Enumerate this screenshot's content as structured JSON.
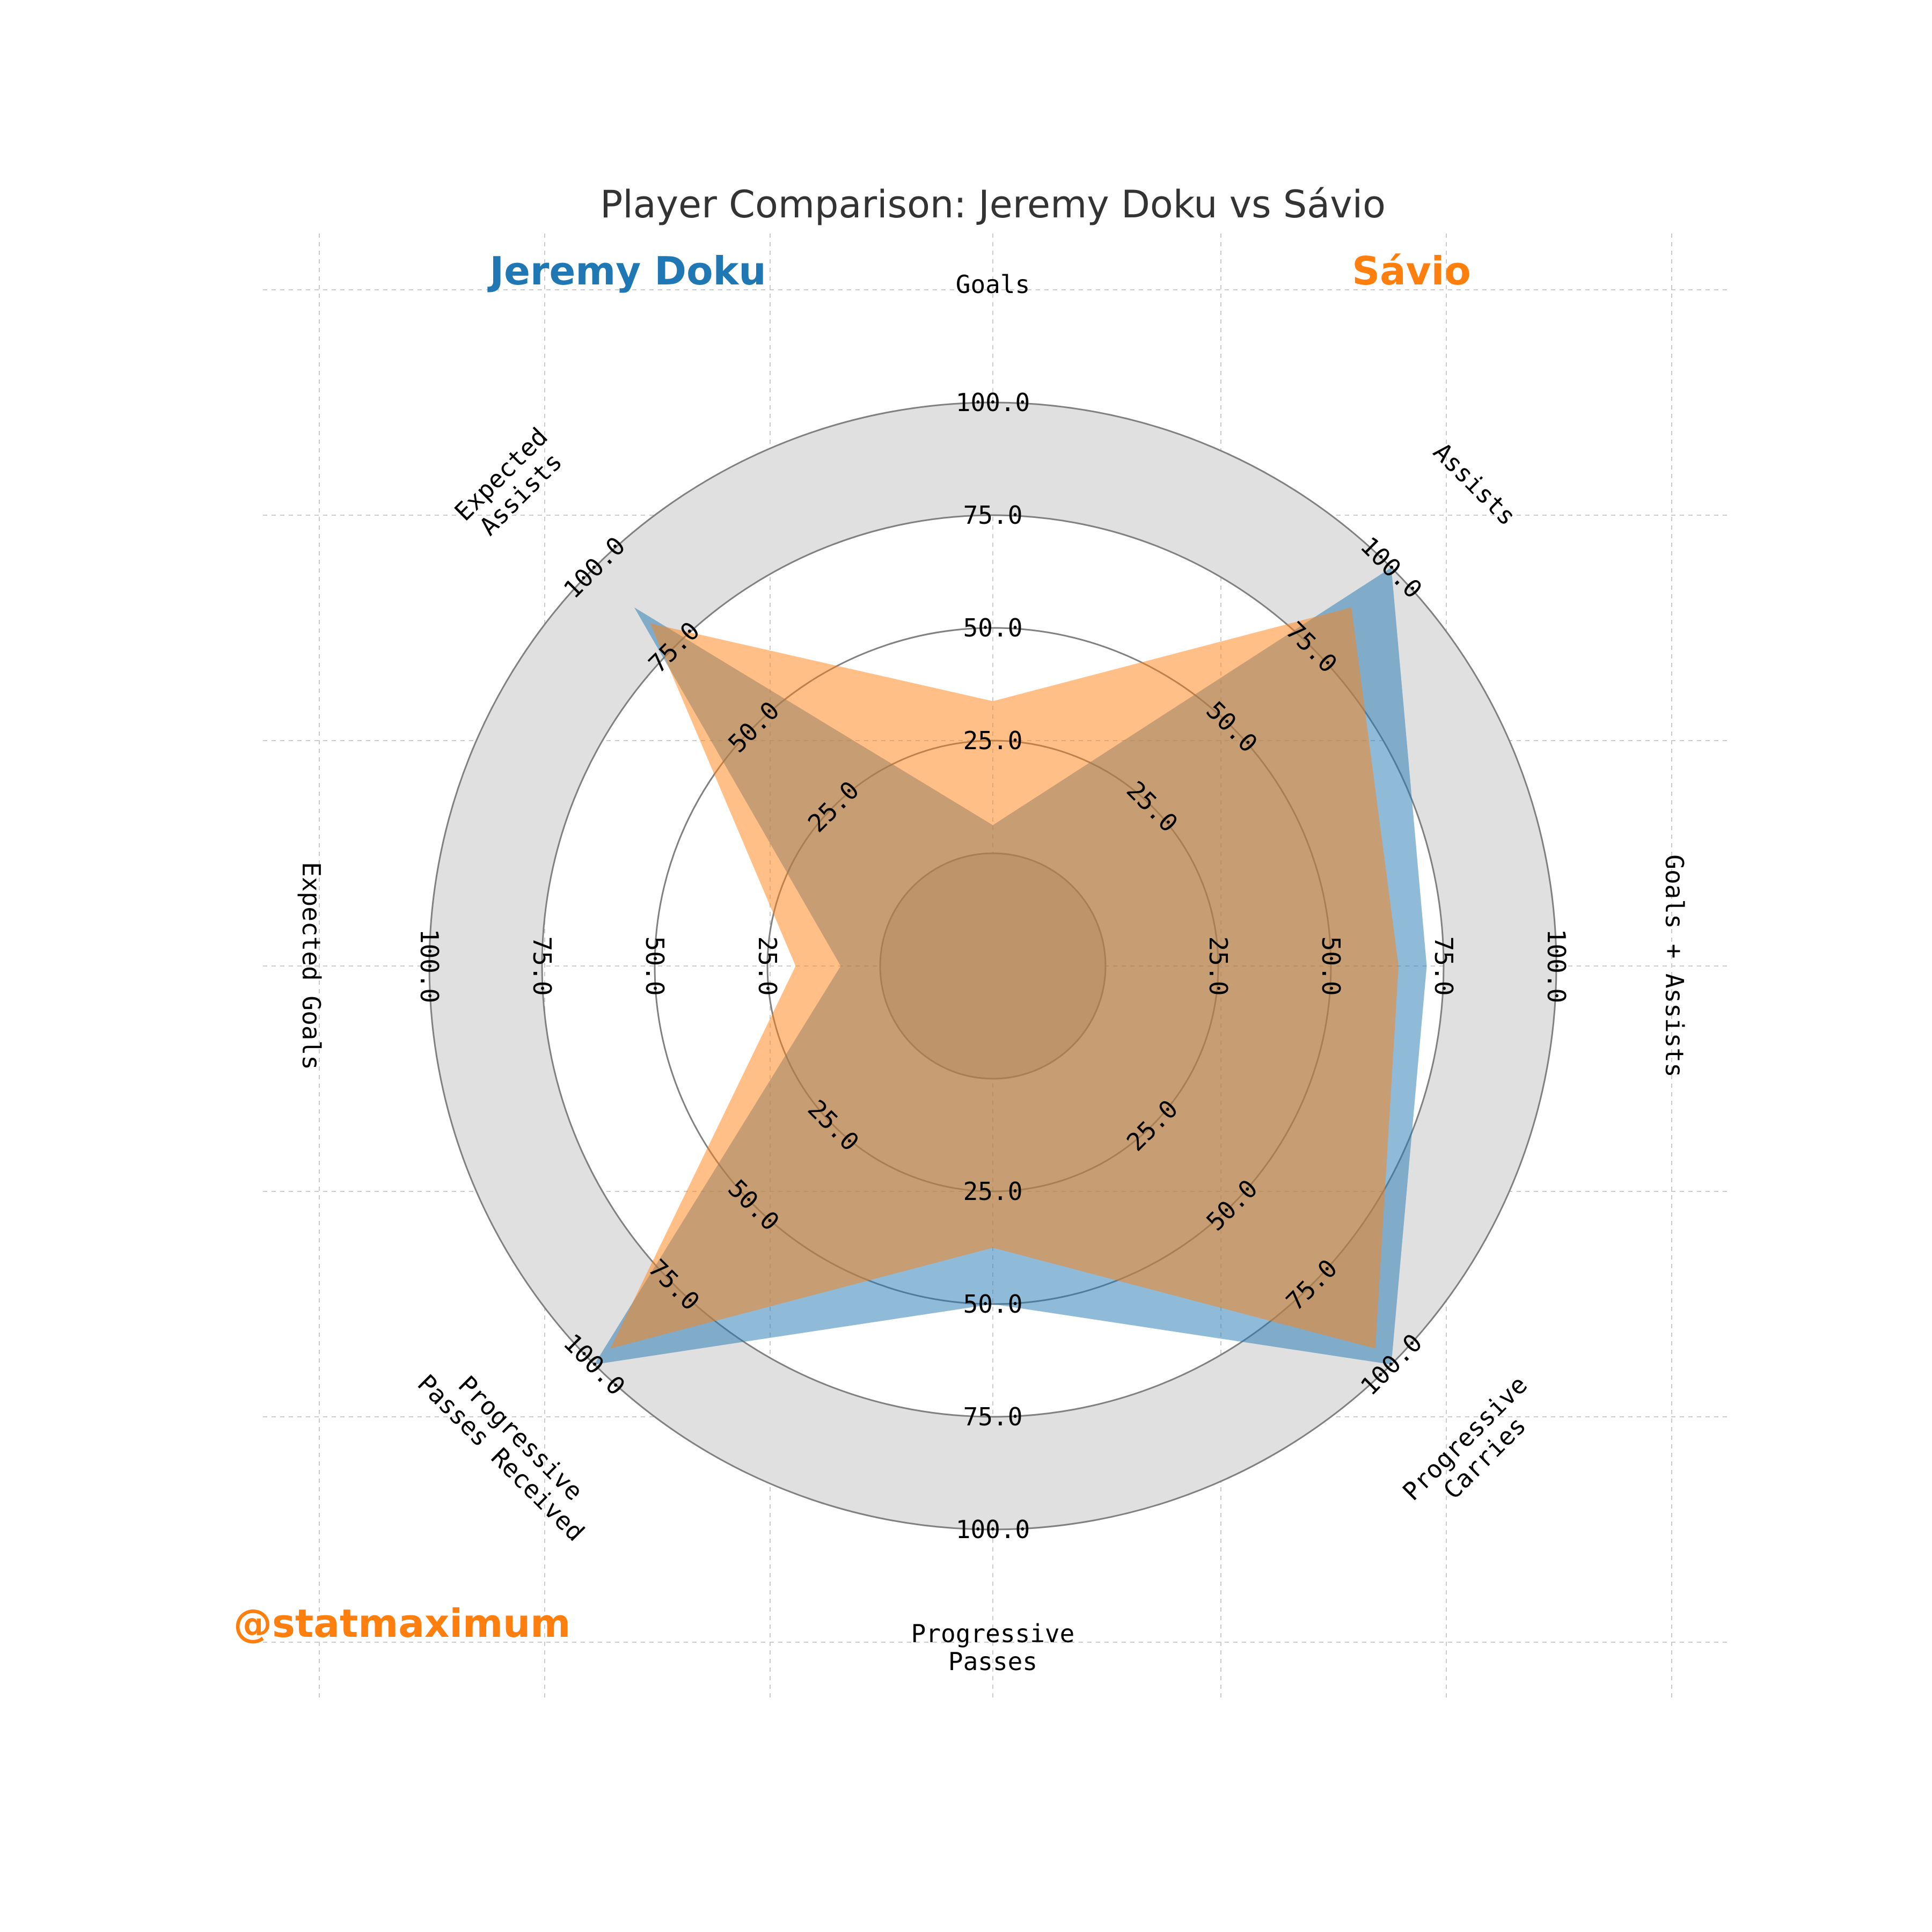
{
  "title": "Player Comparison: Jeremy Doku vs Sávio",
  "watermark": "@statmaximum",
  "players": [
    {
      "name": "Jeremy Doku",
      "color": "#1f77b4"
    },
    {
      "name": "Sávio",
      "color": "#ff7f0e"
    }
  ],
  "chart_data": {
    "type": "radar",
    "categories": [
      "Goals",
      "Assists",
      "Goals + Assists",
      "Progressive\nCarries",
      "Progressive\nPasses",
      "Progressive\nPasses Received",
      "Expected Goals",
      "Expected\nAssists"
    ],
    "series": [
      {
        "name": "Jeremy Doku",
        "values": [
          25,
          100,
          77,
          100,
          60,
          100,
          27,
          90
        ]
      },
      {
        "name": "Sávio",
        "values": [
          47,
          90,
          72,
          96,
          50,
          96,
          35,
          86
        ]
      }
    ],
    "range": [
      0,
      100
    ],
    "ticks": [
      "25.0",
      "50.0",
      "75.0",
      "100.0"
    ],
    "outer_band_color": "#e0e0e0",
    "inner_circle_color": "#d9d9d9",
    "grid": true
  }
}
